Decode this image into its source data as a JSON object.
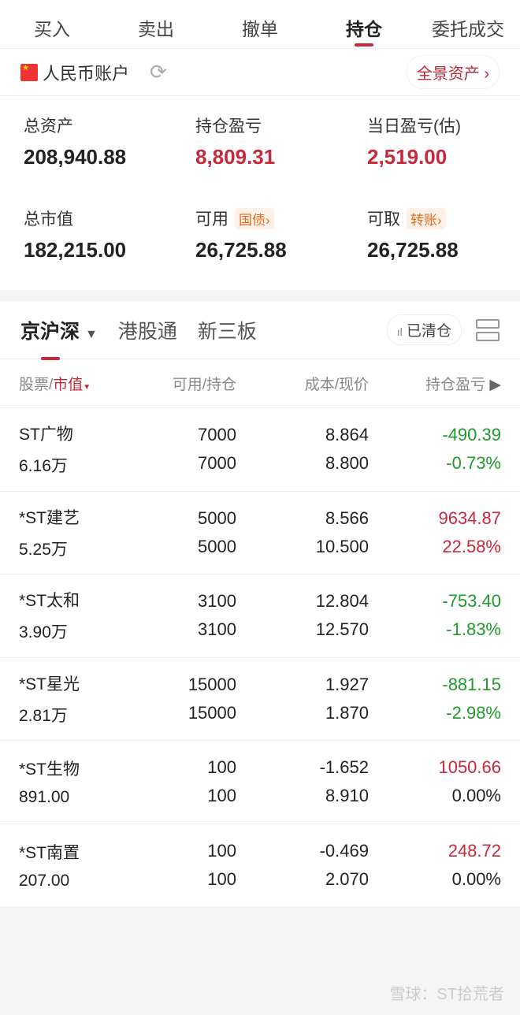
{
  "tabs": [
    "买入",
    "卖出",
    "撤单",
    "持仓",
    "委托成交"
  ],
  "active_tab": 3,
  "account": {
    "name": "人民币账户",
    "panorama": "全景资产 ›"
  },
  "stats": [
    {
      "label": "总资产",
      "value": "208,940.88",
      "color": "normal"
    },
    {
      "label": "持仓盈亏",
      "value": "8,809.31",
      "color": "red"
    },
    {
      "label": "当日盈亏(估)",
      "value": "2,519.00",
      "color": "red"
    },
    {
      "label": "总市值",
      "value": "182,215.00",
      "color": "normal"
    },
    {
      "label": "可用",
      "chip": "国债›",
      "value": "26,725.88",
      "color": "normal"
    },
    {
      "label": "可取",
      "chip": "转账›",
      "value": "26,725.88",
      "color": "normal"
    }
  ],
  "markets": [
    "京沪深",
    "港股通",
    "新三板"
  ],
  "cleared": "已清仓",
  "columns": {
    "c1a": "股票/",
    "c1b": "市值",
    "c2": "可用/持仓",
    "c3": "成本/现价",
    "c4": "持仓盈亏"
  },
  "rows": [
    {
      "name": "ST广物",
      "mv": "6.16万",
      "avail": "7000",
      "hold": "7000",
      "cost": "8.864",
      "price": "8.800",
      "pl": "-490.39",
      "pct": "-0.73%",
      "color": "green"
    },
    {
      "name": "*ST建艺",
      "mv": "5.25万",
      "avail": "5000",
      "hold": "5000",
      "cost": "8.566",
      "price": "10.500",
      "pl": "9634.87",
      "pct": "22.58%",
      "color": "red"
    },
    {
      "name": "*ST太和",
      "mv": "3.90万",
      "avail": "3100",
      "hold": "3100",
      "cost": "12.804",
      "price": "12.570",
      "pl": "-753.40",
      "pct": "-1.83%",
      "color": "green"
    },
    {
      "name": "*ST星光",
      "mv": "2.81万",
      "avail": "15000",
      "hold": "15000",
      "cost": "1.927",
      "price": "1.870",
      "pl": "-881.15",
      "pct": "-2.98%",
      "color": "green"
    },
    {
      "name": "*ST生物",
      "mv": "891.00",
      "avail": "100",
      "hold": "100",
      "cost": "-1.652",
      "price": "8.910",
      "pl": "1050.66",
      "pct": "0.00%",
      "color": "red",
      "pct_color": "normal"
    },
    {
      "name": "*ST南置",
      "mv": "207.00",
      "avail": "100",
      "hold": "100",
      "cost": "-0.469",
      "price": "2.070",
      "pl": "248.72",
      "pct": "0.00%",
      "color": "red",
      "pct_color": "normal"
    }
  ],
  "watermark": "雪球：ST拾荒者",
  "colors": {
    "red": "#c8283c",
    "green": "#1e9a2e"
  }
}
